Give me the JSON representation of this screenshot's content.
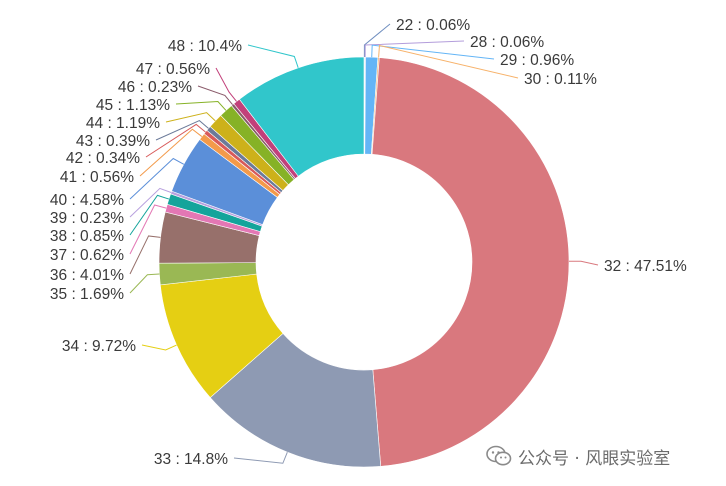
{
  "chart_data": {
    "type": "pie",
    "variant": "donut",
    "label_format": "{name} : {percent}%",
    "slices": [
      {
        "name": "22",
        "percent": "0.06",
        "value": 0.06,
        "color": "#6f8ebf"
      },
      {
        "name": "28",
        "percent": "0.06",
        "value": 0.06,
        "color": "#b39ddb"
      },
      {
        "name": "29",
        "percent": "0.96",
        "value": 0.96,
        "color": "#64b5f6"
      },
      {
        "name": "30",
        "percent": "0.11",
        "value": 0.11,
        "color": "#f7b26a"
      },
      {
        "name": "32",
        "percent": "47.51",
        "value": 47.51,
        "color": "#d9787e"
      },
      {
        "name": "33",
        "percent": "14.8",
        "value": 14.8,
        "color": "#8e9ab3"
      },
      {
        "name": "34",
        "percent": "9.72",
        "value": 9.72,
        "color": "#e5cf13"
      },
      {
        "name": "35",
        "percent": "1.69",
        "value": 1.69,
        "color": "#9ab854"
      },
      {
        "name": "36",
        "percent": "4.01",
        "value": 4.01,
        "color": "#97706b"
      },
      {
        "name": "37",
        "percent": "0.62",
        "value": 0.62,
        "color": "#e377b4"
      },
      {
        "name": "38",
        "percent": "0.85",
        "value": 0.85,
        "color": "#14a49b"
      },
      {
        "name": "39",
        "percent": "0.23",
        "value": 0.23,
        "color": "#b8a0de"
      },
      {
        "name": "40",
        "percent": "4.58",
        "value": 4.58,
        "color": "#5b8fd9"
      },
      {
        "name": "41",
        "percent": "0.56",
        "value": 0.56,
        "color": "#f39a4a"
      },
      {
        "name": "42",
        "percent": "0.34",
        "value": 0.34,
        "color": "#d85a5a"
      },
      {
        "name": "43",
        "percent": "0.39",
        "value": 0.39,
        "color": "#6b7a99"
      },
      {
        "name": "44",
        "percent": "1.19",
        "value": 1.19,
        "color": "#cdb11a"
      },
      {
        "name": "45",
        "percent": "1.13",
        "value": 1.13,
        "color": "#86b226"
      },
      {
        "name": "46",
        "percent": "0.23",
        "value": 0.23,
        "color": "#8a5a6a"
      },
      {
        "name": "47",
        "percent": "0.56",
        "value": 0.56,
        "color": "#c2407a"
      },
      {
        "name": "48",
        "percent": "10.4",
        "value": 10.4,
        "color": "#31c6cb"
      }
    ]
  },
  "watermark": {
    "text": "公众号 · 风眼实验室",
    "icon": "wechat-icon"
  }
}
